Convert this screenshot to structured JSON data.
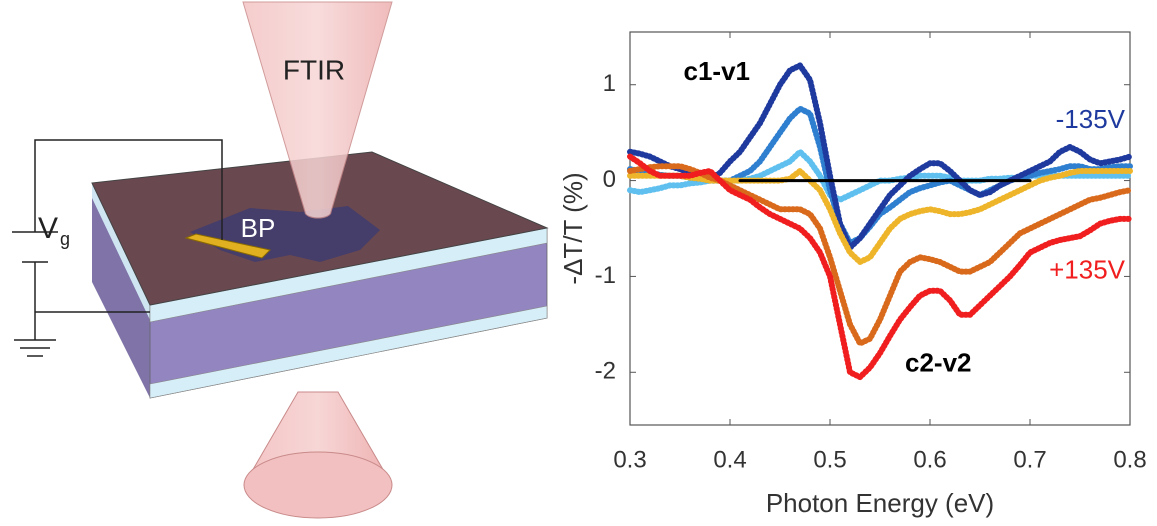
{
  "diagram": {
    "beam_label": "FTIR",
    "sample_label": "BP",
    "gate_label": "V",
    "gate_label_sub": "g"
  },
  "chart_data": {
    "type": "line",
    "xlabel": "Photon Energy (eV)",
    "ylabel": "-ΔT/T (%)",
    "xlim": [
      0.3,
      0.8
    ],
    "xticks": [
      0.3,
      0.4,
      0.5,
      0.6,
      0.7,
      0.8
    ],
    "ylim": [
      -2.55,
      1.55
    ],
    "yticks": [
      -2,
      -1,
      0,
      1
    ],
    "annotations": [
      {
        "text": "c1-v1",
        "color": "#000000"
      },
      {
        "text": "-135V",
        "color": "#1f3a9e"
      },
      {
        "text": "+135V",
        "color": "#f01e1e"
      },
      {
        "text": "c2-v2",
        "color": "#000000"
      }
    ],
    "x": [
      0.3,
      0.31,
      0.32,
      0.33,
      0.34,
      0.35,
      0.36,
      0.37,
      0.38,
      0.39,
      0.4,
      0.41,
      0.42,
      0.43,
      0.44,
      0.45,
      0.46,
      0.47,
      0.48,
      0.49,
      0.5,
      0.51,
      0.52,
      0.53,
      0.54,
      0.55,
      0.56,
      0.57,
      0.58,
      0.59,
      0.6,
      0.61,
      0.62,
      0.63,
      0.64,
      0.65,
      0.66,
      0.67,
      0.68,
      0.69,
      0.7,
      0.71,
      0.72,
      0.73,
      0.74,
      0.75,
      0.76,
      0.77,
      0.78,
      0.79,
      0.8
    ],
    "series": [
      {
        "color": "#5fc0ef",
        "values": [
          -0.1,
          -0.12,
          -0.1,
          -0.08,
          -0.05,
          -0.05,
          -0.03,
          -0.02,
          0,
          0,
          0,
          0,
          0.02,
          0.05,
          0.1,
          0.15,
          0.2,
          0.3,
          0.2,
          0.05,
          -0.15,
          -0.2,
          -0.15,
          -0.1,
          -0.05,
          0,
          0,
          0.02,
          0.03,
          0.05,
          0.05,
          0.05,
          0.03,
          0,
          0,
          0,
          0.02,
          0.02,
          0.03,
          0.03,
          0.05,
          0.05,
          0.05,
          0.05,
          0.05,
          0.05,
          0.05,
          0.05,
          0.05,
          0.05,
          0.05
        ]
      },
      {
        "color": "#2f7fd0",
        "values": [
          0.12,
          0.1,
          0.08,
          0.06,
          0.05,
          0.05,
          0.03,
          0.02,
          0,
          0,
          0,
          0.05,
          0.1,
          0.2,
          0.35,
          0.5,
          0.65,
          0.75,
          0.7,
          0.35,
          -0.1,
          -0.45,
          -0.65,
          -0.6,
          -0.48,
          -0.35,
          -0.28,
          -0.2,
          -0.12,
          -0.08,
          -0.05,
          -0.02,
          0,
          -0.05,
          -0.1,
          -0.15,
          -0.1,
          -0.05,
          0,
          0.03,
          0.05,
          0.08,
          0.1,
          0.12,
          0.15,
          0.15,
          0.12,
          0.12,
          0.14,
          0.15,
          0.15
        ]
      },
      {
        "color": "#1f3a9e",
        "values": [
          0.3,
          0.28,
          0.25,
          0.2,
          0.15,
          0.12,
          0.08,
          0.03,
          0.02,
          0.08,
          0.2,
          0.3,
          0.45,
          0.6,
          0.8,
          1.0,
          1.15,
          1.2,
          1.05,
          0.6,
          0.05,
          -0.45,
          -0.7,
          -0.6,
          -0.45,
          -0.3,
          -0.15,
          -0.05,
          0.05,
          0.12,
          0.18,
          0.18,
          0.1,
          0,
          -0.1,
          -0.15,
          -0.12,
          -0.05,
          0,
          0.05,
          0.1,
          0.15,
          0.2,
          0.3,
          0.35,
          0.3,
          0.22,
          0.18,
          0.2,
          0.22,
          0.25
        ]
      },
      {
        "color": "#eeb52a",
        "values": [
          0.05,
          0.05,
          0.05,
          0.05,
          0.05,
          0.05,
          0.03,
          0.02,
          0,
          0,
          0,
          0,
          0,
          0,
          0,
          0,
          0.02,
          0.1,
          0,
          -0.1,
          -0.3,
          -0.55,
          -0.75,
          -0.85,
          -0.8,
          -0.65,
          -0.5,
          -0.4,
          -0.35,
          -0.32,
          -0.3,
          -0.32,
          -0.35,
          -0.35,
          -0.33,
          -0.3,
          -0.25,
          -0.2,
          -0.15,
          -0.1,
          -0.05,
          0,
          0.03,
          0.05,
          0.08,
          0.1,
          0.1,
          0.1,
          0.1,
          0.1,
          0.1
        ]
      },
      {
        "color": "#d96a1c",
        "values": [
          0.1,
          0.12,
          0.14,
          0.15,
          0.15,
          0.15,
          0.12,
          0.08,
          0.03,
          0,
          -0.05,
          -0.1,
          -0.15,
          -0.2,
          -0.25,
          -0.3,
          -0.3,
          -0.3,
          -0.35,
          -0.5,
          -0.8,
          -1.15,
          -1.5,
          -1.7,
          -1.65,
          -1.45,
          -1.2,
          -0.95,
          -0.85,
          -0.8,
          -0.82,
          -0.85,
          -0.9,
          -0.95,
          -0.95,
          -0.9,
          -0.85,
          -0.75,
          -0.65,
          -0.55,
          -0.5,
          -0.45,
          -0.4,
          -0.35,
          -0.3,
          -0.25,
          -0.2,
          -0.18,
          -0.15,
          -0.12,
          -0.1
        ]
      },
      {
        "color": "#f01e1e",
        "values": [
          0.25,
          0.18,
          0.1,
          0.05,
          0.05,
          0.05,
          0.05,
          0.08,
          0.1,
          0,
          -0.1,
          -0.15,
          -0.2,
          -0.28,
          -0.35,
          -0.4,
          -0.45,
          -0.5,
          -0.6,
          -0.75,
          -1.0,
          -1.5,
          -2.0,
          -2.05,
          -1.95,
          -1.8,
          -1.62,
          -1.45,
          -1.32,
          -1.2,
          -1.15,
          -1.15,
          -1.25,
          -1.4,
          -1.4,
          -1.3,
          -1.2,
          -1.1,
          -1.0,
          -0.88,
          -0.75,
          -0.7,
          -0.65,
          -0.62,
          -0.6,
          -0.58,
          -0.52,
          -0.45,
          -0.42,
          -0.4,
          -0.4
        ]
      },
      {
        "color": "#000000",
        "values": [
          null,
          null,
          null,
          null,
          null,
          null,
          null,
          null,
          null,
          null,
          null,
          0,
          0,
          0,
          0,
          0,
          0,
          0,
          0,
          0,
          0,
          0,
          0,
          0,
          0,
          0,
          0,
          0,
          0,
          0,
          0,
          0,
          0,
          0,
          0,
          0,
          0,
          0,
          0,
          0,
          0,
          null,
          null,
          null,
          null,
          null,
          null,
          null,
          null,
          null,
          null
        ]
      }
    ]
  }
}
